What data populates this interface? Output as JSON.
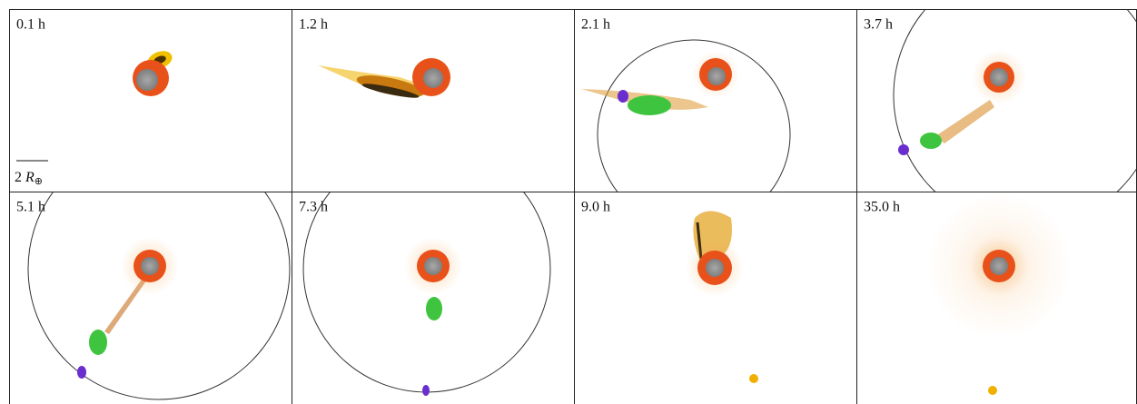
{
  "panels": [
    {
      "label": "0.1 h"
    },
    {
      "label": "1.2 h"
    },
    {
      "label": "2.1 h"
    },
    {
      "label": "3.7 h"
    },
    {
      "label": "5.1 h"
    },
    {
      "label": "7.3 h"
    },
    {
      "label": "9.0 h"
    },
    {
      "label": "35.0 h"
    }
  ],
  "scale_bar": {
    "number": "2",
    "symbol": "R",
    "subscript": "⊕"
  }
}
